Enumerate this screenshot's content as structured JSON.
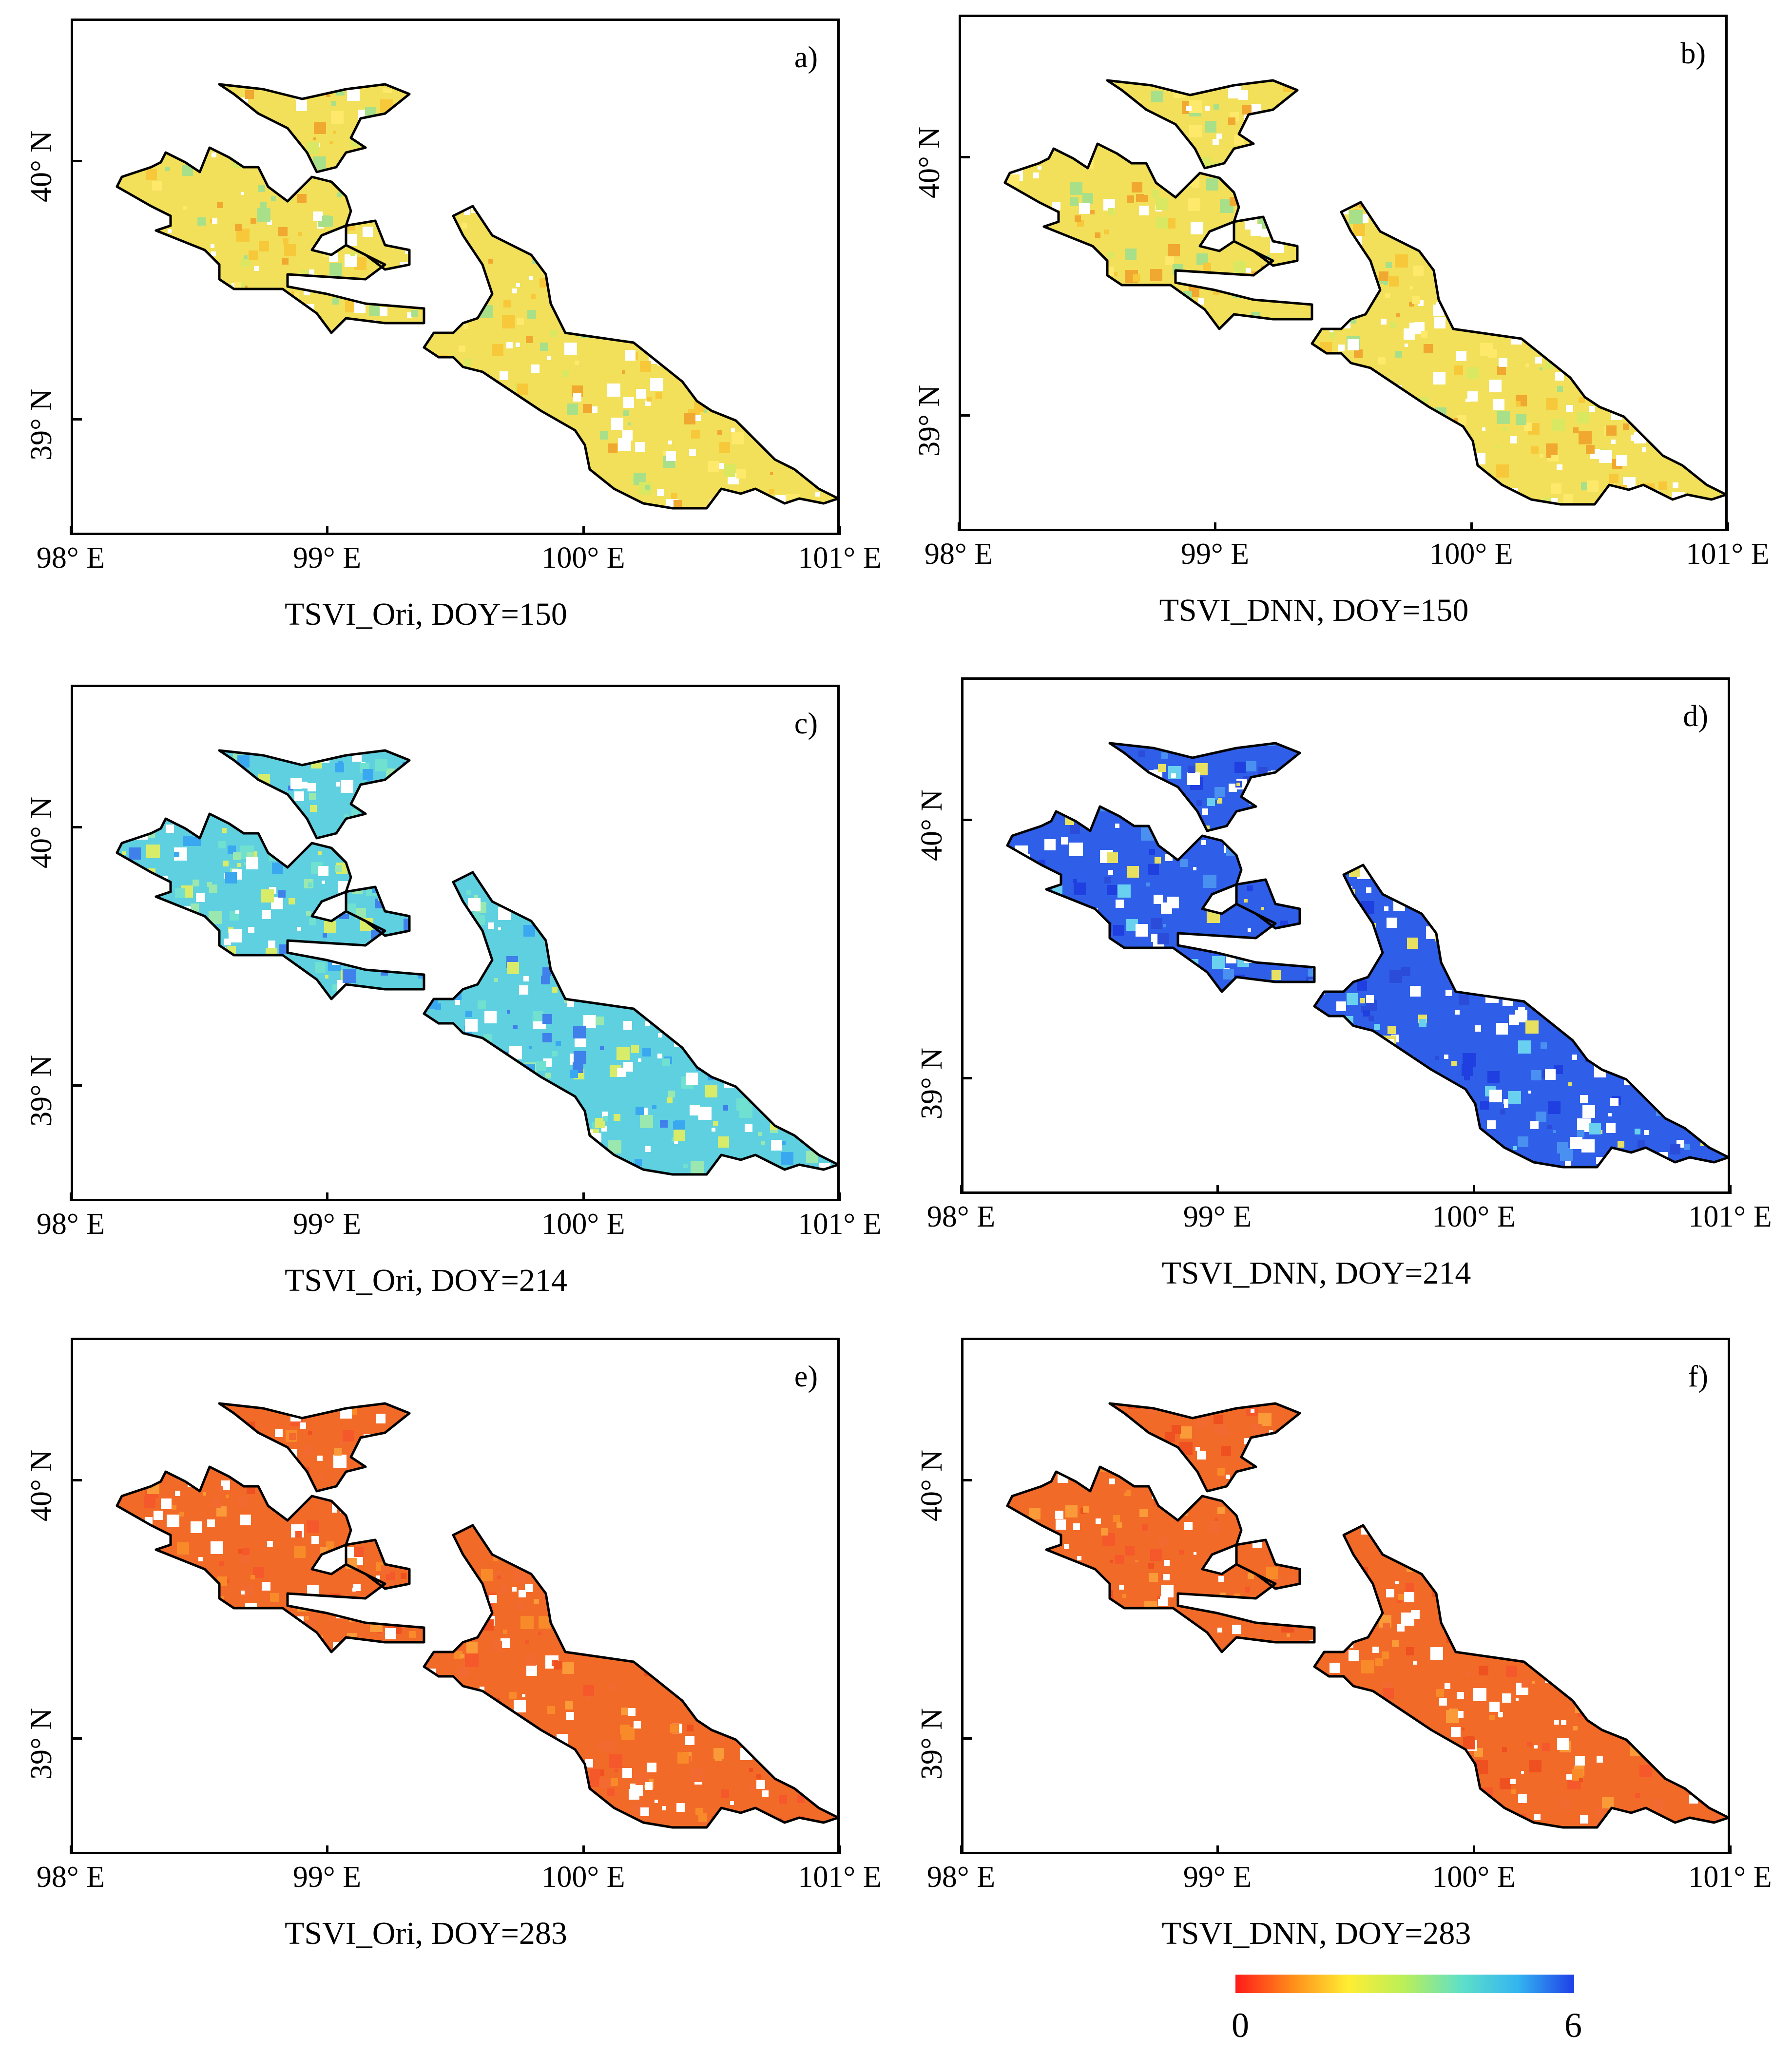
{
  "panels": [
    {
      "letter": "a)",
      "caption": "TSVI_Ori, DOY=150",
      "scheme": "yellow"
    },
    {
      "letter": "b)",
      "caption": "TSVI_DNN, DOY=150",
      "scheme": "yellow"
    },
    {
      "letter": "c)",
      "caption": "TSVI_Ori, DOY=214",
      "scheme": "cyan"
    },
    {
      "letter": "d)",
      "caption": "TSVI_DNN, DOY=214",
      "scheme": "blue"
    },
    {
      "letter": "e)",
      "caption": "TSVI_Ori, DOY=283",
      "scheme": "orange"
    },
    {
      "letter": "f)",
      "caption": "TSVI_DNN, DOY=283",
      "scheme": "orange"
    }
  ],
  "axes": {
    "lat_labels": [
      "40° N",
      "39° N"
    ],
    "lon_labels": [
      "98° E",
      "99° E",
      "100° E",
      "101° E"
    ]
  },
  "colorbar": {
    "min_label": "0",
    "max_label": "6",
    "colors": [
      "#ff1a1a",
      "#ff8c1a",
      "#ffee33",
      "#b9ef5a",
      "#5fe0c8",
      "#33b5f0",
      "#1f3fe8"
    ]
  },
  "schemes": {
    "yellow": {
      "base": "#f2e05a",
      "mix": [
        "#f7c93a",
        "#d9e860",
        "#a8e08a",
        "#f0a830",
        "#ffe96b"
      ]
    },
    "cyan": {
      "base": "#5fd0e0",
      "mix": [
        "#3aa8f0",
        "#9ae8b0",
        "#4080ea",
        "#d8ec6a",
        "#70e0d0"
      ]
    },
    "blue": {
      "base": "#2f5fe8",
      "mix": [
        "#1f3fe0",
        "#4a90f0",
        "#6ad0f0",
        "#2a4cd8",
        "#e8e060"
      ]
    },
    "orange": {
      "base": "#f26a28",
      "mix": [
        "#f5582a",
        "#f88a2a",
        "#ee5020",
        "#fa9a38",
        "#f36a30"
      ]
    }
  }
}
